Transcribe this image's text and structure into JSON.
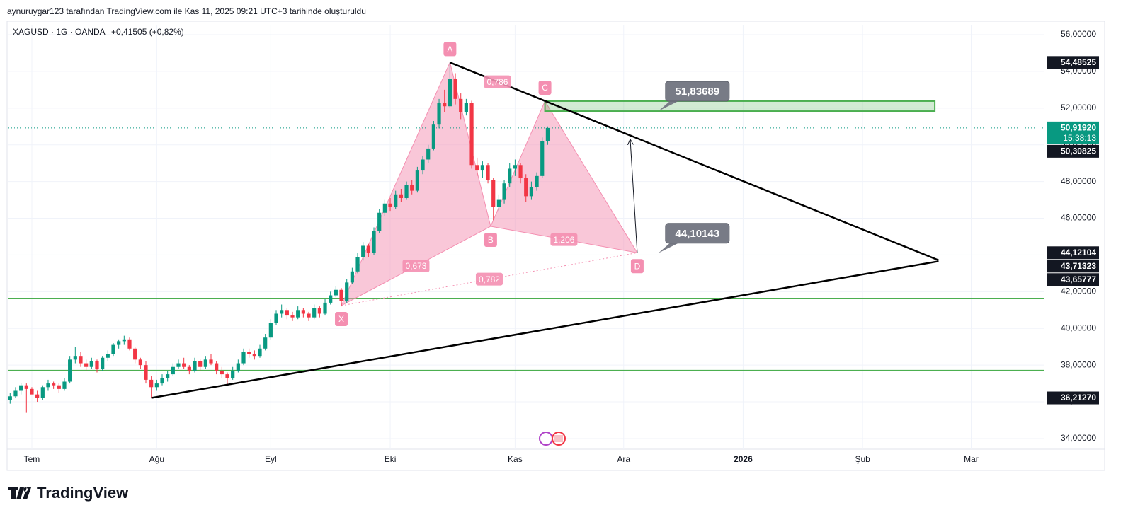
{
  "header": "aynuruygar123 tarafından TradingView.com ile Kas 11, 2025 09:21 UTC+3 tarihinde oluşturuldu",
  "logo": "TradingView",
  "chart_data": {
    "type": "candlestick",
    "symbol": "XAGUSD · 1G · OANDA",
    "change": "+0,41505 (+0,82%)",
    "up_color": "#089981",
    "down_color": "#f23645",
    "grid": true,
    "xlim": [
      -0.3,
      190.5
    ],
    "xticks": [
      {
        "value": 4,
        "label": "Tem"
      },
      {
        "value": 27,
        "label": "Ağu"
      },
      {
        "value": 48,
        "label": "Eyl"
      },
      {
        "value": 70,
        "label": "Eki"
      },
      {
        "value": 93,
        "label": "Kas"
      },
      {
        "value": 113,
        "label": "Ara"
      },
      {
        "value": 135,
        "label": "2026"
      },
      {
        "value": 157,
        "label": "Şub"
      },
      {
        "value": 177,
        "label": "Mar"
      }
    ],
    "ylim": [
      33.42,
      56.54
    ],
    "yticks": [
      {
        "value": 34,
        "label": "34,00000"
      },
      {
        "value": 36,
        "label": "36,00000"
      },
      {
        "value": 38,
        "label": "38,00000"
      },
      {
        "value": 40,
        "label": "40,00000"
      },
      {
        "value": 42,
        "label": "42,00000"
      },
      {
        "value": 44,
        "label": "44,00000"
      },
      {
        "value": 46,
        "label": "46,00000"
      },
      {
        "value": 48,
        "label": "48,00000"
      },
      {
        "value": 50,
        "label": "50,00000"
      },
      {
        "value": 52,
        "label": "52,00000"
      },
      {
        "value": 54,
        "label": "54,00000"
      },
      {
        "value": 56,
        "label": "56,00000"
      }
    ],
    "candles": {
      "open": [
        36.1,
        36.3,
        36.6,
        36.9,
        36.7,
        36.4,
        36.2,
        36.8,
        37.0,
        36.9,
        36.7,
        37.1,
        38.3,
        38.5,
        38.1,
        37.9,
        38.2,
        37.8,
        38.4,
        38.6,
        39.1,
        39.3,
        39.4,
        38.9,
        38.3,
        38.0,
        37.2,
        36.8,
        37.0,
        37.3,
        37.5,
        37.9,
        38.1,
        37.9,
        37.7,
        38.2,
        37.9,
        38.3,
        38.1,
        37.7,
        37.5,
        37.3,
        37.7,
        38.1,
        38.7,
        38.6,
        38.5,
        38.9,
        39.5,
        40.3,
        40.8,
        41.0,
        40.7,
        40.6,
        41.0,
        40.8,
        40.6,
        41.1,
        40.8,
        41.4,
        41.8,
        42.1,
        41.5,
        42.5,
        43.1,
        43.9,
        44.5,
        44.1,
        45.3,
        46.3,
        46.8,
        46.6,
        47.3,
        47.1,
        47.8,
        47.5,
        48.6,
        49.2,
        49.8,
        51.1,
        52.3,
        52.1,
        53.6,
        52.5,
        51.8,
        52.3,
        48.9,
        48.6,
        48.9,
        48.1,
        46.6,
        47.0,
        47.9,
        48.7,
        48.9,
        48.2,
        47.2,
        47.7,
        48.3,
        50.2
      ],
      "high": [
        36.5,
        36.8,
        37.0,
        37.0,
        36.8,
        36.6,
        36.9,
        37.2,
        37.1,
        37.0,
        37.3,
        38.5,
        39.0,
        38.7,
        38.3,
        38.4,
        38.3,
        38.5,
        38.8,
        39.2,
        39.4,
        39.6,
        39.5,
        39.0,
        38.4,
        38.2,
        37.4,
        37.2,
        37.5,
        37.7,
        38.1,
        38.3,
        38.4,
        38.0,
        38.4,
        38.3,
        38.5,
        38.6,
        38.2,
        37.9,
        37.6,
        37.9,
        38.3,
        38.9,
        38.9,
        38.8,
        39.1,
        39.7,
        40.5,
        41.0,
        41.3,
        41.1,
        40.9,
        41.2,
        41.1,
        40.9,
        41.3,
        41.2,
        41.6,
        42.0,
        42.3,
        42.2,
        42.7,
        43.3,
        44.1,
        44.7,
        44.6,
        45.5,
        46.5,
        47.0,
        47.1,
        47.5,
        47.6,
        48.0,
        48.1,
        48.8,
        49.4,
        50.0,
        51.3,
        52.5,
        53.0,
        54.48525,
        53.9,
        52.8,
        52.5,
        52.4,
        49.3,
        49.1,
        49.0,
        48.2,
        47.3,
        48.1,
        49.0,
        49.2,
        49.0,
        48.4,
        48.0,
        48.5,
        50.4,
        51.0
      ],
      "low": [
        35.9,
        36.2,
        36.4,
        35.4,
        36.5,
        36.0,
        36.1,
        36.6,
        36.7,
        36.5,
        36.6,
        37.0,
        38.1,
        37.9,
        37.7,
        37.8,
        37.6,
        37.7,
        38.2,
        38.5,
        38.9,
        39.1,
        38.8,
        38.1,
        37.8,
        37.0,
        36.2,
        36.6,
        36.9,
        37.1,
        37.4,
        37.8,
        37.8,
        37.5,
        37.6,
        37.7,
        37.8,
        38.0,
        37.5,
        37.3,
        36.9,
        37.2,
        37.6,
        38.0,
        38.4,
        38.3,
        38.4,
        38.8,
        39.4,
        40.2,
        40.6,
        40.5,
        40.4,
        40.5,
        40.6,
        40.4,
        40.5,
        40.6,
        40.7,
        41.3,
        41.7,
        41.2,
        41.4,
        42.4,
        43.0,
        43.7,
        43.9,
        44.0,
        45.2,
        46.1,
        46.4,
        46.5,
        46.9,
        47.0,
        47.3,
        47.4,
        48.4,
        49.0,
        49.7,
        50.9,
        51.8,
        52.0,
        52.2,
        51.4,
        51.6,
        48.7,
        48.3,
        48.2,
        47.9,
        45.9,
        46.4,
        46.8,
        47.7,
        48.3,
        47.9,
        46.9,
        47.0,
        47.5,
        48.2,
        50.0
      ],
      "close": [
        36.3,
        36.6,
        36.9,
        36.7,
        36.4,
        36.2,
        36.8,
        37.0,
        36.9,
        36.7,
        37.1,
        38.3,
        38.5,
        38.1,
        37.9,
        38.2,
        37.8,
        38.4,
        38.6,
        39.1,
        39.3,
        39.4,
        38.9,
        38.3,
        38.0,
        37.2,
        36.8,
        37.0,
        37.3,
        37.5,
        37.9,
        38.1,
        37.9,
        37.7,
        38.2,
        37.9,
        38.3,
        38.1,
        37.7,
        37.5,
        37.3,
        37.7,
        38.1,
        38.7,
        38.6,
        38.5,
        38.9,
        39.5,
        40.3,
        40.8,
        41.0,
        40.7,
        40.6,
        41.0,
        40.8,
        40.6,
        41.1,
        40.8,
        41.4,
        41.8,
        42.1,
        41.5,
        42.5,
        43.1,
        43.9,
        44.5,
        44.1,
        45.3,
        46.3,
        46.8,
        46.6,
        47.3,
        47.1,
        47.8,
        47.5,
        48.6,
        49.2,
        49.8,
        51.1,
        52.3,
        52.1,
        53.6,
        52.5,
        51.8,
        52.3,
        48.9,
        48.6,
        48.9,
        48.1,
        46.6,
        47.0,
        47.9,
        48.7,
        48.9,
        48.2,
        47.2,
        47.7,
        48.3,
        50.2,
        50.9192
      ]
    },
    "last_price": {
      "value": 50.9192,
      "label": "50,91920",
      "countdown": "15:38:13",
      "color": "#089981"
    },
    "price_labels": [
      {
        "value": 54.48525,
        "label": "54,48525"
      },
      {
        "value": 50.30825,
        "label": "50,30825"
      },
      {
        "value": 44.12104,
        "label": "44,12104"
      },
      {
        "value": 43.71323,
        "label": "43,71323"
      },
      {
        "value": 43.65777,
        "label": "43,65777"
      },
      {
        "value": 36.2127,
        "label": "36,21270"
      }
    ],
    "trend_lines": [
      {
        "from": [
          81,
          54.48525
        ],
        "to": [
          171,
          43.71323
        ],
        "color": "#000000"
      },
      {
        "from": [
          26,
          36.2127
        ],
        "to": [
          171,
          43.65777
        ],
        "color": "#000000"
      }
    ],
    "horizontal_lines": {
      "color": "#4caf50",
      "values": [
        41.63,
        37.7
      ]
    },
    "pattern": {
      "color": "#f48fb1",
      "points": [
        {
          "label": "X",
          "x": 61,
          "y": 41.24
        },
        {
          "label": "A",
          "x": 81,
          "y": 54.48525
        },
        {
          "label": "B",
          "x": 88.5,
          "y": 45.56
        },
        {
          "label": "C",
          "x": 98.5,
          "y": 52.38
        },
        {
          "label": "D",
          "x": 115.5,
          "y": 44.12104
        }
      ],
      "ratios": [
        "0,786",
        "0,673",
        "1,206",
        "0,782"
      ]
    },
    "zone": {
      "x": [
        98.5,
        170.3
      ],
      "y": [
        51.83689,
        52.38
      ],
      "color": "#4caf50"
    },
    "callouts": [
      {
        "label": "51,83689",
        "value": 51.83689,
        "x": 119.4
      },
      {
        "label": "44,10143",
        "value": 44.10143,
        "x": 119.4
      }
    ],
    "arrow": {
      "from": [
        115.5,
        44.12104
      ],
      "to": [
        114.2,
        50.30825
      ]
    }
  }
}
